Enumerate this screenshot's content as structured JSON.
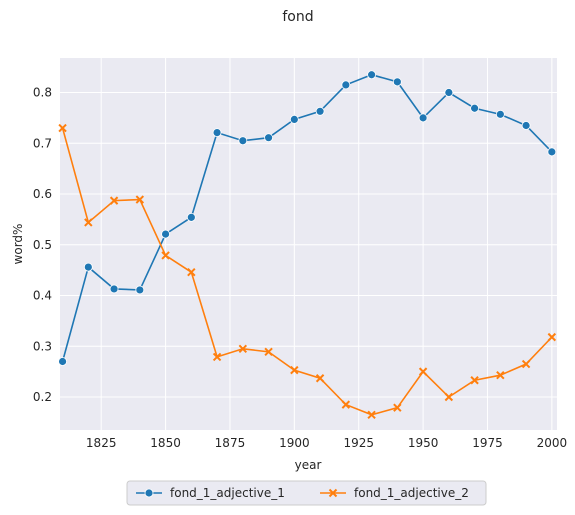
{
  "chart_data": {
    "type": "line",
    "title": "fond",
    "xlabel": "year",
    "ylabel": "word%",
    "xlim": [
      1809,
      2002
    ],
    "ylim": [
      0.135,
      0.868
    ],
    "xticks": [
      1825,
      1850,
      1875,
      1900,
      1925,
      1950,
      1975,
      2000
    ],
    "yticks": [
      0.2,
      0.3,
      0.4,
      0.5,
      0.6,
      0.7,
      0.8
    ],
    "ytick_labels": [
      "0.2",
      "0.3",
      "0.4",
      "0.5",
      "0.6",
      "0.7",
      "0.8"
    ],
    "grid": true,
    "legend_position": "bottom-center",
    "x": [
      1810,
      1820,
      1830,
      1840,
      1850,
      1860,
      1870,
      1880,
      1890,
      1900,
      1910,
      1920,
      1930,
      1940,
      1950,
      1960,
      1970,
      1980,
      1990,
      2000
    ],
    "series": [
      {
        "name": "fond_1_adjective_1",
        "color": "#1f77b4",
        "marker": "circle",
        "values": [
          0.27,
          0.456,
          0.413,
          0.411,
          0.521,
          0.554,
          0.721,
          0.705,
          0.711,
          0.747,
          0.763,
          0.815,
          0.835,
          0.821,
          0.75,
          0.8,
          0.769,
          0.757,
          0.735,
          0.683
        ]
      },
      {
        "name": "fond_1_adjective_2",
        "color": "#ff7f0e",
        "marker": "x",
        "values": [
          0.73,
          0.544,
          0.587,
          0.589,
          0.479,
          0.446,
          0.279,
          0.295,
          0.289,
          0.253,
          0.237,
          0.185,
          0.165,
          0.179,
          0.25,
          0.2,
          0.233,
          0.243,
          0.265,
          0.318
        ]
      }
    ]
  }
}
